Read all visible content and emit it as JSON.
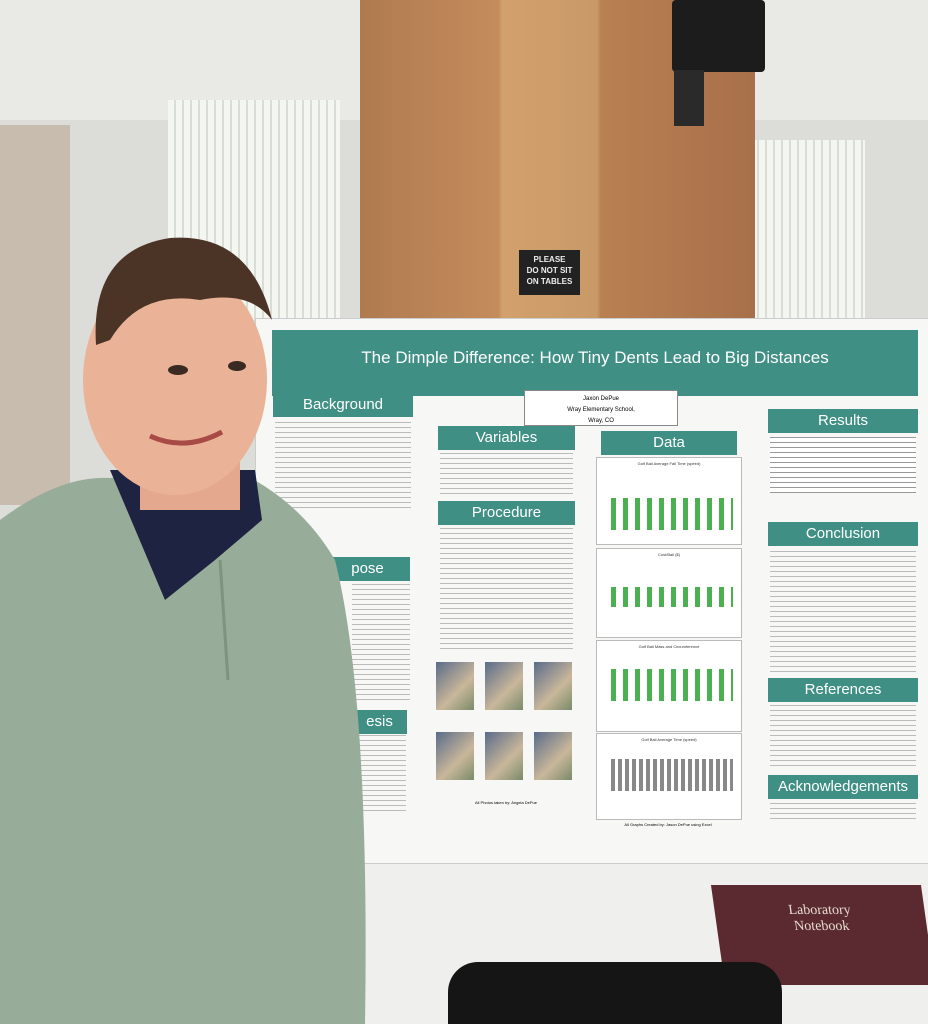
{
  "sign": {
    "lines": [
      "PLEASE",
      "DO NOT SIT",
      "ON TABLES"
    ]
  },
  "poster": {
    "title": "The Dimple Difference: How Tiny Dents Lead to Big Distances",
    "author": "Jaxon DePue",
    "school": "Wray Elementary School,",
    "location": "Wray, CO",
    "sections": [
      "Background",
      "pose",
      "esis",
      "Variables",
      "Procedure",
      "Data",
      "Results",
      "Conclusion",
      "References",
      "Acknowledgements"
    ],
    "graphs": [
      "Golf Ball Average Fall Time (speed)",
      "Cost/Ball ($)",
      "Golf Ball Mass and Circumference",
      "Golf Ball Average Time (speed)"
    ],
    "photo_credit": "All Photos taken by: Angela DePue",
    "graph_credit": "All Graphs Created by: Jason DePue using Excel"
  },
  "notebook": {
    "title": "Laboratory Notebook"
  }
}
